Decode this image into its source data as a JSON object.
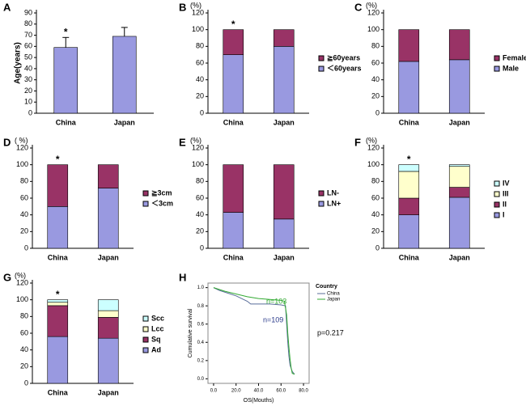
{
  "chart_data": [
    {
      "type": "bar",
      "label": "A",
      "ylabel": "Age(years)",
      "categories": [
        "China",
        "Japan"
      ],
      "values": [
        59,
        69
      ],
      "errors": [
        9,
        8
      ],
      "color": "#9999e0",
      "ylim": [
        0,
        90
      ],
      "yticks": [
        0,
        10,
        20,
        30,
        40,
        50,
        60,
        70,
        80,
        90
      ],
      "annotation": {
        "text": "*",
        "category": "China"
      }
    },
    {
      "type": "stacked_bar",
      "label": "B",
      "ylabel": "(%)",
      "categories": [
        "China",
        "Japan"
      ],
      "series": [
        {
          "name": "＜60years",
          "color": "#9999e0",
          "values": [
            70,
            80
          ]
        },
        {
          "name": "≧60years",
          "color": "#993366",
          "values": [
            30,
            20
          ]
        }
      ],
      "ylim": [
        0,
        120
      ],
      "yticks": [
        0,
        20,
        40,
        60,
        80,
        100,
        120
      ],
      "annotation": {
        "text": "*",
        "category": "China"
      }
    },
    {
      "type": "stacked_bar",
      "label": "C",
      "ylabel": "(%)",
      "categories": [
        "China",
        "Japan"
      ],
      "series": [
        {
          "name": "Male",
          "color": "#9999e0",
          "values": [
            62,
            64
          ]
        },
        {
          "name": "Female",
          "color": "#993366",
          "values": [
            38,
            36
          ]
        }
      ],
      "ylim": [
        0,
        120
      ],
      "yticks": [
        0,
        20,
        40,
        60,
        80,
        100,
        120
      ]
    },
    {
      "type": "stacked_bar",
      "label": "D",
      "ylabel": "( %)",
      "categories": [
        "China",
        "Japan"
      ],
      "series": [
        {
          "name": "＜3cm",
          "color": "#9999e0",
          "values": [
            50,
            72
          ]
        },
        {
          "name": "≧3cm",
          "color": "#993366",
          "values": [
            50,
            28
          ]
        }
      ],
      "ylim": [
        0,
        120
      ],
      "yticks": [
        0,
        20,
        40,
        60,
        80,
        100,
        120
      ],
      "annotation": {
        "text": "*",
        "category": "China"
      }
    },
    {
      "type": "stacked_bar",
      "label": "E",
      "ylabel": "(%)",
      "categories": [
        "China",
        "Japan"
      ],
      "series": [
        {
          "name": "LN+",
          "color": "#9999e0",
          "values": [
            43,
            35
          ]
        },
        {
          "name": "LN-",
          "color": "#993366",
          "values": [
            57,
            65
          ]
        }
      ],
      "ylim": [
        0,
        120
      ],
      "yticks": [
        0,
        20,
        40,
        60,
        80,
        100,
        120
      ]
    },
    {
      "type": "stacked_bar",
      "label": "F",
      "ylabel": "(%)",
      "categories": [
        "China",
        "Japan"
      ],
      "series": [
        {
          "name": "I",
          "color": "#9999e0",
          "values": [
            40,
            61
          ]
        },
        {
          "name": "II",
          "color": "#993366",
          "values": [
            20,
            12
          ]
        },
        {
          "name": "III",
          "color": "#ffffcc",
          "values": [
            32,
            25
          ]
        },
        {
          "name": "IV",
          "color": "#ccffff",
          "values": [
            8,
            2
          ]
        }
      ],
      "ylim": [
        0,
        120
      ],
      "yticks": [
        0,
        20,
        40,
        60,
        80,
        100,
        120
      ],
      "annotation": {
        "text": "*",
        "category": "China"
      }
    },
    {
      "type": "stacked_bar",
      "label": "G",
      "ylabel": "(%)",
      "categories": [
        "China",
        "Japan"
      ],
      "series": [
        {
          "name": "Ad",
          "color": "#9999e0",
          "values": [
            56,
            54
          ]
        },
        {
          "name": "Sq",
          "color": "#993366",
          "values": [
            37,
            25
          ]
        },
        {
          "name": "Lcc",
          "color": "#ffffcc",
          "values": [
            4,
            8
          ]
        },
        {
          "name": "Scc",
          "color": "#ccffff",
          "values": [
            3,
            13
          ]
        }
      ],
      "ylim": [
        0,
        120
      ],
      "yticks": [
        0,
        20,
        40,
        60,
        80,
        100,
        120
      ],
      "annotation": {
        "text": "*",
        "category": "China"
      }
    },
    {
      "type": "line",
      "label": "H",
      "xlabel": "OS(Mouths)",
      "ylabel": "Cumulative survival",
      "legend_title": "Country",
      "series": [
        {
          "name": "China",
          "color": "#5a6e9a",
          "x": [
            0,
            5,
            10,
            15,
            20,
            25,
            30,
            33,
            40,
            50,
            60,
            64,
            65,
            66,
            67,
            68,
            70,
            72
          ],
          "values": [
            1,
            0.97,
            0.95,
            0.93,
            0.91,
            0.88,
            0.85,
            0.82,
            0.82,
            0.82,
            0.81,
            0.8,
            0.6,
            0.4,
            0.25,
            0.15,
            0.08,
            0.05
          ]
        },
        {
          "name": "Japan",
          "color": "#33aa33",
          "x": [
            0,
            5,
            10,
            20,
            30,
            40,
            50,
            60,
            63,
            65,
            66,
            67,
            68,
            69,
            70,
            72
          ],
          "values": [
            1,
            0.98,
            0.96,
            0.93,
            0.9,
            0.88,
            0.87,
            0.86,
            0.85,
            0.7,
            0.5,
            0.35,
            0.22,
            0.12,
            0.06,
            0.05
          ]
        }
      ],
      "annotations": [
        {
          "text": "n=103",
          "color": "#33aa33"
        },
        {
          "text": "n=109",
          "color": "#2a3a8a"
        },
        {
          "text": "p=0.217",
          "color": "#000000"
        }
      ],
      "xlim": [
        -5,
        85
      ],
      "xticks": [
        {
          "value": 0,
          "label": "0.0"
        },
        {
          "value": 20,
          "label": "20.0"
        },
        {
          "value": 40,
          "label": "40.0"
        },
        {
          "value": 60,
          "label": "60.0"
        },
        {
          "value": 80,
          "label": "80.0"
        }
      ],
      "ylim": [
        -0.05,
        1.05
      ],
      "yticks": [
        {
          "value": 0,
          "label": "0.0"
        },
        {
          "value": 0.2,
          "label": "0.2"
        },
        {
          "value": 0.4,
          "label": "0.4"
        },
        {
          "value": 0.6,
          "label": "0.6"
        },
        {
          "value": 0.8,
          "label": "0.8"
        },
        {
          "value": 1,
          "label": "1.0"
        }
      ]
    }
  ]
}
